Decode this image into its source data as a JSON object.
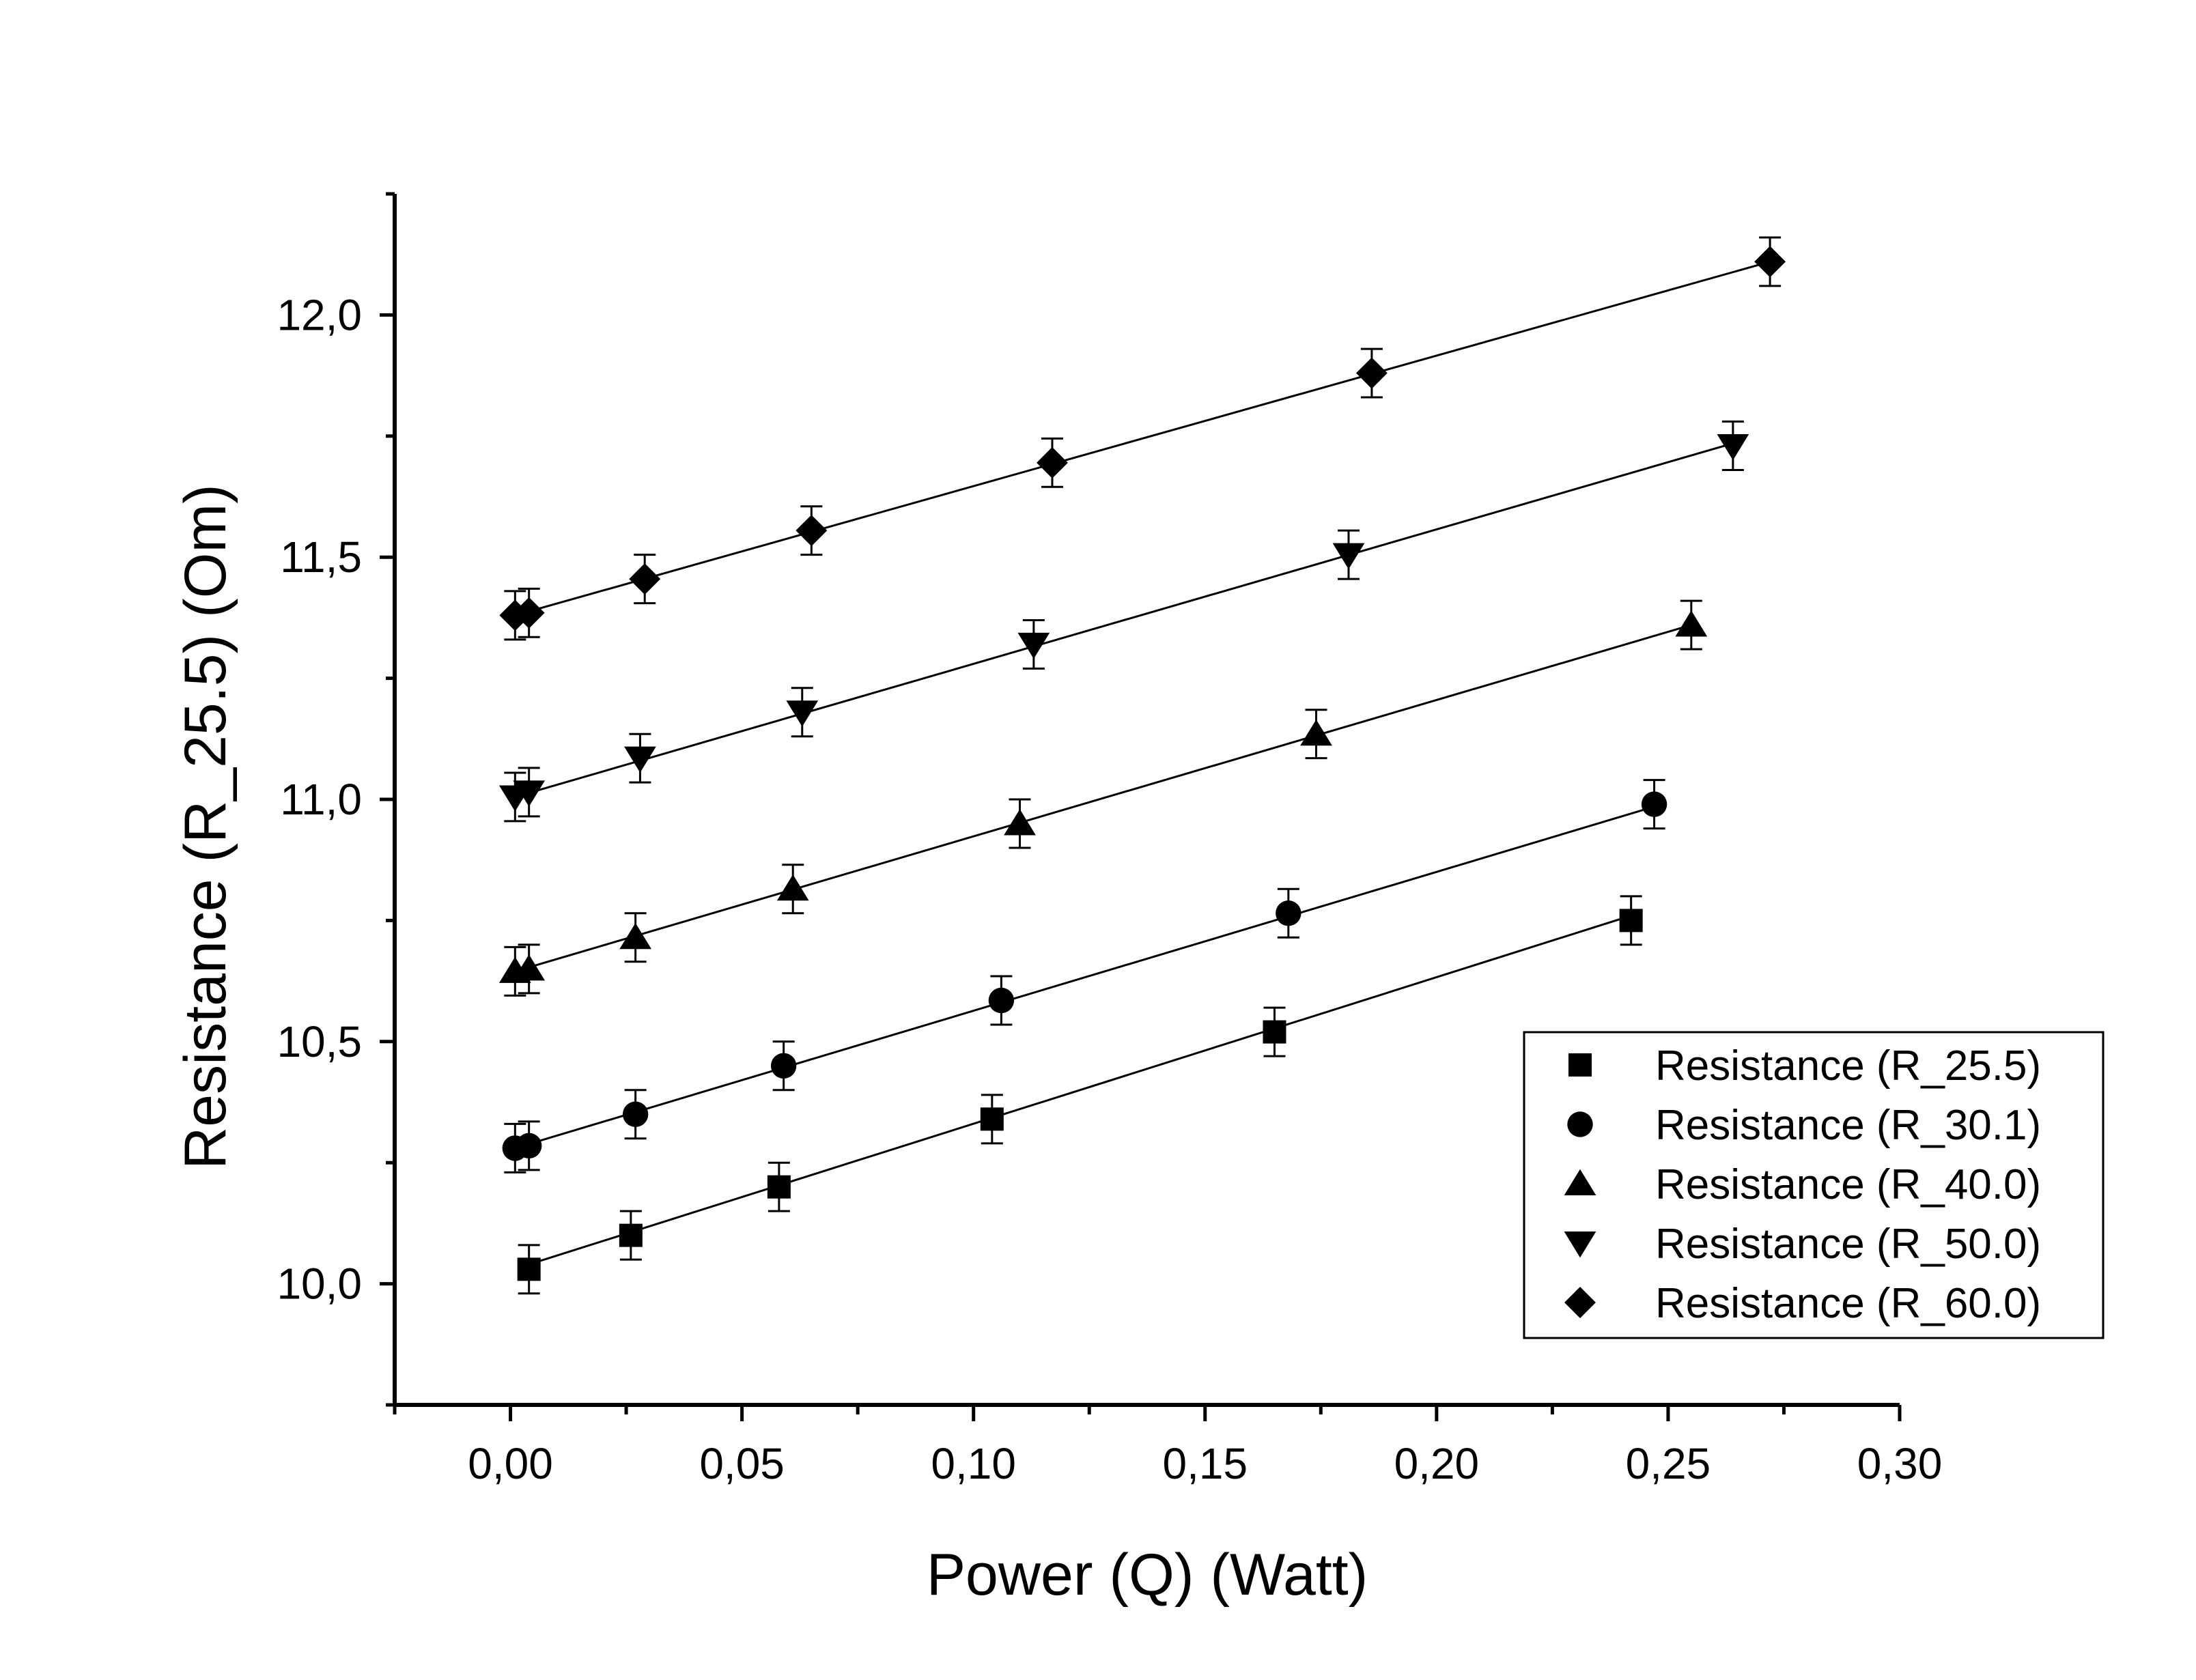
{
  "chart_data": {
    "type": "scatter",
    "title": "",
    "xlabel": "Power (Q) (Watt)",
    "ylabel": "Resistance (R_25.5) (Om)",
    "xlim": [
      -0.025,
      0.3
    ],
    "ylim": [
      9.75,
      12.25
    ],
    "x_ticks": [
      {
        "value": 0.0,
        "label": "0,00"
      },
      {
        "value": 0.05,
        "label": "0,05"
      },
      {
        "value": 0.1,
        "label": "0,10"
      },
      {
        "value": 0.15,
        "label": "0,15"
      },
      {
        "value": 0.2,
        "label": "0,20"
      },
      {
        "value": 0.25,
        "label": "0,25"
      },
      {
        "value": 0.3,
        "label": "0,30"
      }
    ],
    "y_ticks": [
      {
        "value": 10.0,
        "label": "10,0"
      },
      {
        "value": 10.5,
        "label": "10,5"
      },
      {
        "value": 11.0,
        "label": "11,0"
      },
      {
        "value": 11.5,
        "label": "11,5"
      },
      {
        "value": 12.0,
        "label": "12,0"
      }
    ],
    "grid": false,
    "legend_position": "bottom-right",
    "error_bar": 0.05,
    "series": [
      {
        "name": "Resistance (R_25.5)",
        "marker": "square",
        "x": [
          0.004,
          0.026,
          0.058,
          0.104,
          0.165,
          0.242
        ],
        "y": [
          10.03,
          10.1,
          10.2,
          10.34,
          10.52,
          10.75
        ],
        "fit": [
          [
            0.004,
            10.04
          ],
          [
            0.242,
            10.76
          ]
        ]
      },
      {
        "name": "Resistance (R_30.1)",
        "marker": "circle",
        "x": [
          0.001,
          0.004,
          0.027,
          0.059,
          0.106,
          0.168,
          0.247
        ],
        "y": [
          10.28,
          10.285,
          10.35,
          10.45,
          10.585,
          10.765,
          10.99
        ],
        "fit": [
          [
            0.001,
            10.28
          ],
          [
            0.247,
            10.985
          ]
        ]
      },
      {
        "name": "Resistance (R_40.0)",
        "marker": "triangle-up",
        "x": [
          0.001,
          0.004,
          0.027,
          0.061,
          0.11,
          0.174,
          0.255
        ],
        "y": [
          10.645,
          10.65,
          10.715,
          10.815,
          10.95,
          11.135,
          11.36
        ],
        "fit": [
          [
            0.001,
            10.645
          ],
          [
            0.255,
            11.36
          ]
        ]
      },
      {
        "name": "Resistance (R_50.0)",
        "marker": "triangle-down",
        "x": [
          0.001,
          0.004,
          0.028,
          0.063,
          0.113,
          0.181,
          0.264
        ],
        "y": [
          11.005,
          11.015,
          11.085,
          11.18,
          11.32,
          11.505,
          11.73
        ],
        "fit": [
          [
            0.001,
            11.005
          ],
          [
            0.264,
            11.735
          ]
        ]
      },
      {
        "name": "Resistance (R_60.0)",
        "marker": "diamond",
        "x": [
          0.001,
          0.004,
          0.029,
          0.065,
          0.117,
          0.186,
          0.272
        ],
        "y": [
          11.38,
          11.385,
          11.455,
          11.555,
          11.695,
          11.88,
          12.11
        ],
        "fit": [
          [
            0.001,
            11.38
          ],
          [
            0.272,
            12.11
          ]
        ]
      }
    ]
  }
}
